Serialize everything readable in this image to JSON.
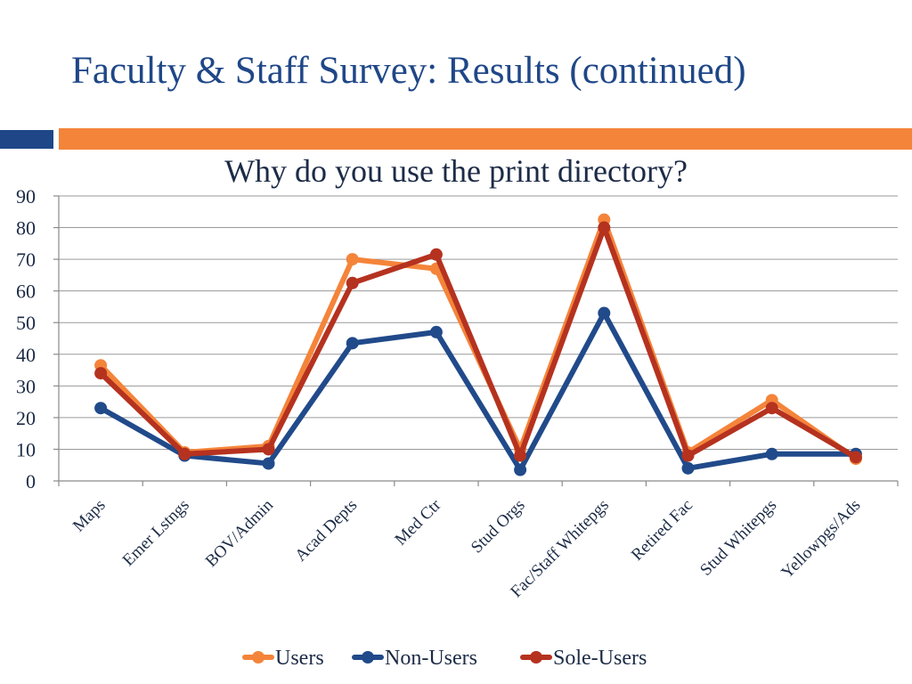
{
  "slide": {
    "title": "Faculty & Staff Survey: Results (continued)",
    "accent_left_color": "#1f4788",
    "accent_right_color": "#f4843a"
  },
  "chart_data": {
    "type": "line",
    "title": "Why do you use the print directory?",
    "xlabel": "",
    "ylabel": "",
    "ylim": [
      0,
      90
    ],
    "yticks": [
      0,
      10,
      20,
      30,
      40,
      50,
      60,
      70,
      80,
      90
    ],
    "grid": true,
    "legend_position": "bottom",
    "categories": [
      "Maps",
      "Emer Lstngs",
      "BOV/Admin",
      "Acad Depts",
      "Med Ctr",
      "Stud Orgs",
      "Fac/Staff Whitepgs",
      "Retired Fac",
      "Stud Whitepgs",
      "Yellowpgs/Ads"
    ],
    "series": [
      {
        "name": "Users",
        "color": "#f4843a",
        "values": [
          36.5,
          9,
          11,
          70,
          67,
          10,
          82.5,
          9,
          25.5,
          7
        ]
      },
      {
        "name": "Non-Users",
        "color": "#214a8a",
        "values": [
          23,
          8,
          5.5,
          43.5,
          47,
          3.5,
          53,
          4,
          8.5,
          8.5
        ]
      },
      {
        "name": "Sole-Users",
        "color": "#b5321f",
        "values": [
          34,
          8.5,
          10,
          62.5,
          71.5,
          8,
          80,
          8,
          23,
          7.5
        ]
      }
    ]
  }
}
